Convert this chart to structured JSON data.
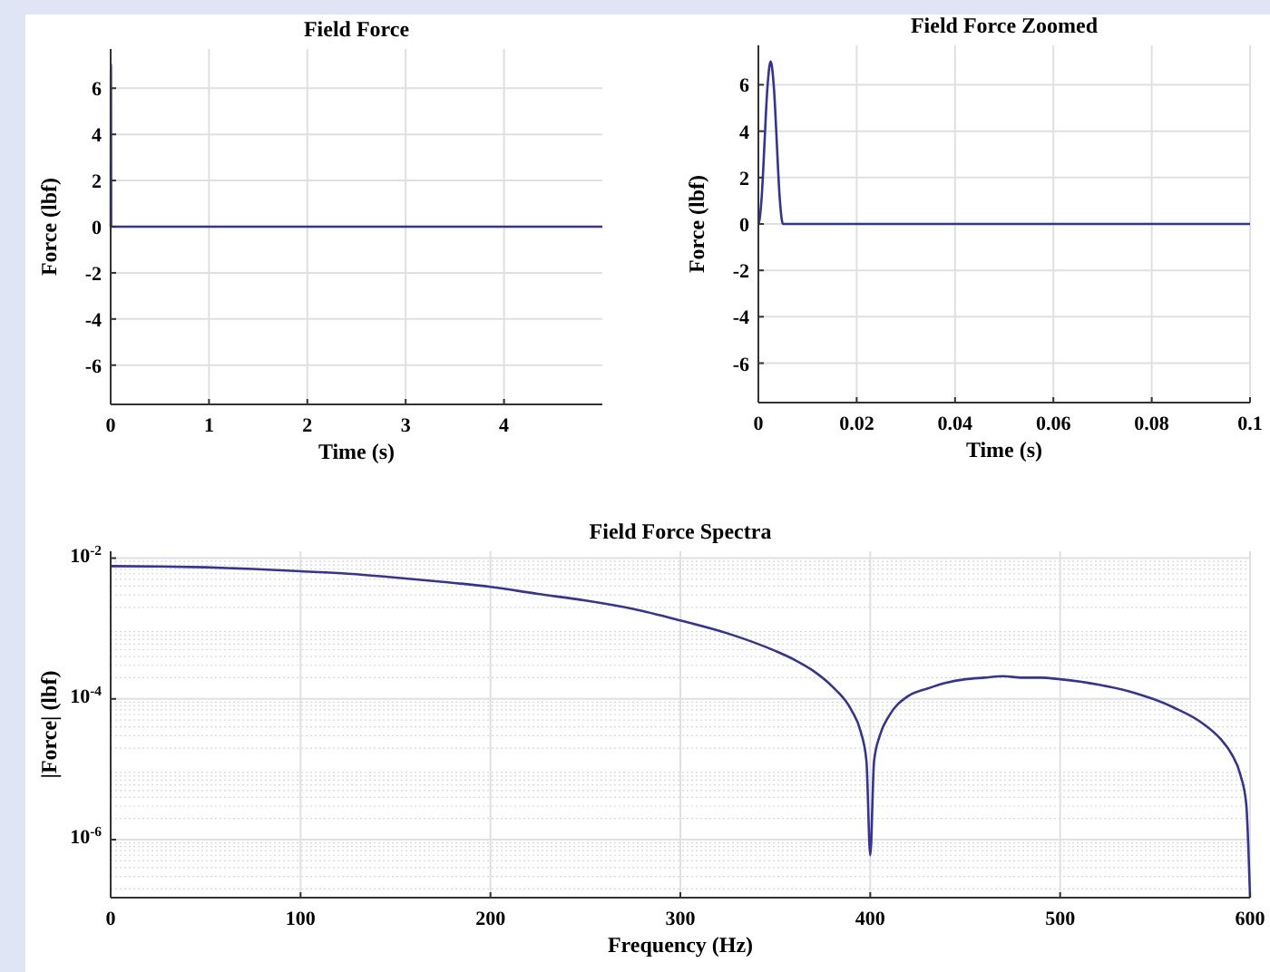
{
  "chart_data": [
    {
      "type": "line",
      "title": "Field Force",
      "xlabel": "Time (s)",
      "ylabel": "Force (lbf)",
      "color": "#33339a",
      "x": [
        0,
        0.00025,
        0.0005,
        0.00075,
        0.001,
        0.00125,
        0.0015,
        0.00175,
        0.002,
        0.00225,
        0.0025,
        0.00275,
        0.003,
        0.00325,
        0.0035,
        0.00375,
        0.004,
        0.00425,
        0.0045,
        0.00475,
        0.005,
        5
      ],
      "values": [
        0,
        0.2,
        0.7,
        1.4,
        2.4,
        3.5,
        4.6,
        5.6,
        6.3,
        6.8,
        7,
        6.8,
        6.3,
        5.6,
        4.6,
        3.5,
        2.4,
        1.4,
        0.7,
        0.2,
        0,
        0
      ],
      "xlim": [
        0,
        5
      ],
      "xticks": [
        0,
        1,
        2,
        3,
        4
      ],
      "ylim": [
        -7.7,
        7.7
      ],
      "yticks": [
        -6,
        -4,
        -2,
        0,
        2,
        4,
        6
      ],
      "grid": true
    },
    {
      "type": "line",
      "title": "Field Force Zoomed",
      "xlabel": "Time (s)",
      "ylabel": "Force (lbf)",
      "color": "#33339a",
      "x": [
        0,
        0.00025,
        0.0005,
        0.00075,
        0.001,
        0.00125,
        0.0015,
        0.00175,
        0.002,
        0.00225,
        0.0025,
        0.00275,
        0.003,
        0.00325,
        0.0035,
        0.00375,
        0.004,
        0.00425,
        0.0045,
        0.00475,
        0.005,
        0.1
      ],
      "values": [
        0,
        0.2,
        0.7,
        1.4,
        2.4,
        3.5,
        4.6,
        5.6,
        6.3,
        6.8,
        7,
        6.8,
        6.3,
        5.6,
        4.6,
        3.5,
        2.4,
        1.4,
        0.7,
        0.2,
        0,
        0
      ],
      "xlim": [
        0,
        0.1
      ],
      "xticks": [
        0,
        0.02,
        0.04,
        0.06,
        0.08,
        0.1
      ],
      "ylim": [
        -7.7,
        7.7
      ],
      "yticks": [
        -6,
        -4,
        -2,
        0,
        2,
        4,
        6
      ],
      "grid": true
    },
    {
      "type": "line",
      "title": "Field Force Spectra",
      "xlabel": "Frequency (Hz)",
      "ylabel": "|Force| (lbf)",
      "color": "#33339a",
      "log": "y",
      "x": [
        0,
        25,
        50,
        75,
        100,
        125,
        150,
        175,
        200,
        225,
        250,
        275,
        300,
        325,
        350,
        360,
        370,
        380,
        390,
        395,
        398,
        400,
        402,
        405,
        410,
        420,
        430,
        440,
        450,
        460,
        470,
        480,
        490,
        500,
        520,
        540,
        560,
        575,
        585,
        590,
        595,
        598,
        600
      ],
      "values": [
        0.0077,
        0.0076,
        0.0074,
        0.007,
        0.0065,
        0.006,
        0.0053,
        0.0046,
        0.0039,
        0.0031,
        0.0025,
        0.0019,
        0.0013,
        0.00085,
        0.00048,
        0.00036,
        0.00025,
        0.00015,
        7e-05,
        3.4e-05,
        1.3e-05,
        6e-07,
        1.3e-05,
        3e-05,
        5.8e-05,
        0.00011,
        0.00014,
        0.00017,
        0.00019,
        0.0002,
        0.00021,
        0.0002,
        0.0002,
        0.00019,
        0.00016,
        0.00012,
        7.5e-05,
        4.5e-05,
        2.6e-05,
        1.7e-05,
        8.2e-06,
        3.2e-06,
        1.5e-07
      ],
      "xlim": [
        0,
        600
      ],
      "xticks": [
        0,
        100,
        200,
        300,
        400,
        500,
        600
      ],
      "ylim": [
        1.5e-07,
        0.0125
      ],
      "yticks": [
        {
          "value": 0.01,
          "label": "10$^{-2}$"
        },
        {
          "value": 0.0001,
          "label": "10$^{-4}$"
        },
        {
          "value": 1e-06,
          "label": "10$^{-6}$"
        }
      ],
      "grid": true
    }
  ]
}
